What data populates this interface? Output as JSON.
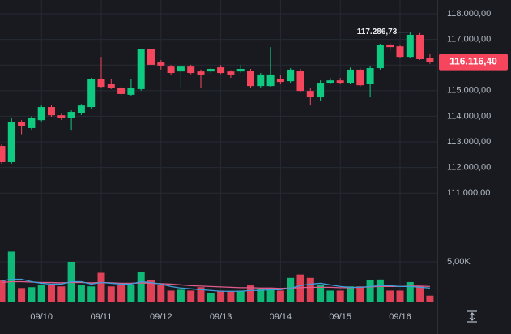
{
  "chart_data": {
    "type": "candlestick",
    "categories": [
      null,
      null,
      null,
      null,
      "09/10",
      null,
      null,
      null,
      null,
      null,
      "09/11",
      null,
      null,
      null,
      null,
      null,
      "09/12",
      null,
      null,
      null,
      null,
      null,
      "09/13",
      null,
      null,
      null,
      null,
      null,
      "09/14",
      null,
      null,
      null,
      null,
      null,
      "09/15",
      null,
      null,
      null,
      null,
      null,
      "09/16",
      null,
      null,
      null
    ],
    "open": [
      112840,
      112210,
      113790,
      113540,
      113850,
      114360,
      114040,
      113950,
      114110,
      114360,
      115470,
      115250,
      115120,
      114840,
      115060,
      116610,
      116100,
      115940,
      115750,
      115940,
      115750,
      115750,
      115910,
      115750,
      115750,
      115780,
      115180,
      115180,
      115470,
      115370,
      115780,
      114990,
      114740,
      115310,
      115400,
      115310,
      115820,
      115250,
      115880,
      116800,
      116730,
      116320,
      117180,
      116260
    ],
    "high": [
      112900,
      113950,
      113850,
      114000,
      114420,
      114420,
      114100,
      114230,
      114480,
      115500,
      116320,
      115470,
      115200,
      115470,
      116640,
      116640,
      116200,
      116000,
      116000,
      116010,
      115820,
      115900,
      116000,
      115800,
      116010,
      115850,
      115690,
      116700,
      115600,
      115880,
      115850,
      115100,
      115400,
      115500,
      115500,
      115900,
      115880,
      115950,
      116830,
      116860,
      116800,
      117286.73,
      117250,
      116450
    ],
    "low": [
      112150,
      112150,
      113300,
      113480,
      113800,
      113980,
      113850,
      113470,
      114050,
      114300,
      115100,
      115060,
      114800,
      114780,
      115000,
      115950,
      115820,
      115630,
      115120,
      115640,
      115120,
      115700,
      115650,
      115500,
      115700,
      115120,
      115120,
      115150,
      115280,
      115310,
      114930,
      114420,
      114600,
      115250,
      115250,
      115250,
      115150,
      114740,
      115820,
      116550,
      116260,
      116260,
      116200,
      116050
    ],
    "close": [
      112210,
      113790,
      113630,
      113950,
      114360,
      114040,
      113920,
      114170,
      114420,
      115440,
      115150,
      115120,
      114870,
      115120,
      116610,
      116010,
      115980,
      115690,
      115940,
      115690,
      115630,
      115850,
      115690,
      115630,
      115850,
      115180,
      115630,
      115630,
      115340,
      115820,
      114990,
      114740,
      115310,
      115400,
      115310,
      115820,
      115210,
      115880,
      116770,
      116700,
      116320,
      117180,
      116230,
      116116.4
    ],
    "up_color": "#0ecb81",
    "down_color": "#f6465d",
    "ylim": [
      109930,
      118540
    ],
    "yticks": [
      {
        "value": 111000,
        "label": "111.000,00"
      },
      {
        "value": 112000,
        "label": "112.000,00"
      },
      {
        "value": 113000,
        "label": "113.000,00"
      },
      {
        "value": 114000,
        "label": "114.000,00"
      },
      {
        "value": 115000,
        "label": "115.000,00"
      },
      {
        "value": 116000,
        "label": "116.000,00"
      },
      {
        "value": 117000,
        "label": "117.000,00"
      },
      {
        "value": 118000,
        "label": "118.000,00"
      }
    ],
    "grid": true,
    "high_label": {
      "value": 117286.73,
      "label": "117.286,73"
    },
    "last_price": {
      "value": 116116.4,
      "label": "116.116,40"
    },
    "volume": {
      "values": [
        2660,
        6280,
        1700,
        1810,
        2130,
        2130,
        1910,
        5000,
        2130,
        1910,
        3620,
        1910,
        2130,
        2130,
        3720,
        2660,
        2130,
        1380,
        1490,
        1380,
        1810,
        1060,
        1380,
        1280,
        1380,
        2130,
        1600,
        1490,
        1380,
        2980,
        3400,
        2980,
        2130,
        1380,
        1380,
        1910,
        1910,
        2660,
        2770,
        1380,
        1380,
        2450,
        1910,
        740
      ],
      "ylim": [
        0,
        10200
      ],
      "yticks": [
        {
          "value": 5000,
          "label": "5,00K"
        }
      ]
    },
    "volume_ma": [
      {
        "color": "#e05c8a",
        "values": [
          2400,
          2500,
          2500,
          2450,
          2400,
          2400,
          2350,
          2400,
          2400,
          2350,
          2400,
          2350,
          2300,
          2300,
          2350,
          2300,
          2250,
          2200,
          2100,
          2000,
          1950,
          1900,
          1850,
          1800,
          1750,
          1750,
          1700,
          1700,
          1650,
          1700,
          1750,
          1800,
          1800,
          1800,
          1750,
          1750,
          1800,
          1850,
          1900,
          1900,
          1900,
          1950,
          1950,
          1900
        ]
      },
      {
        "color": "#3d9fd8",
        "values": [
          2600,
          2800,
          2800,
          2500,
          2300,
          2200,
          2200,
          2500,
          2500,
          2200,
          2400,
          2300,
          2200,
          2200,
          2500,
          2400,
          2200,
          1900,
          1700,
          1600,
          1500,
          1400,
          1300,
          1300,
          1300,
          1400,
          1400,
          1500,
          1500,
          1700,
          2000,
          2200,
          2300,
          2100,
          1900,
          1800,
          1800,
          1900,
          2000,
          2000,
          1900,
          1900,
          1800,
          1700
        ]
      }
    ]
  }
}
